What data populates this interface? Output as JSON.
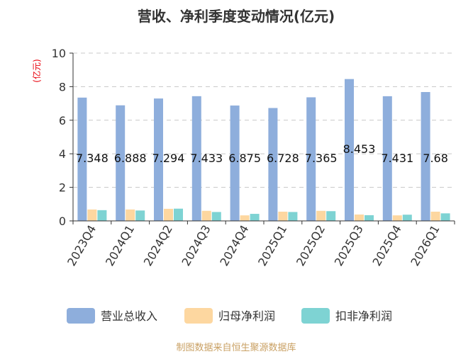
{
  "chart_data": {
    "type": "bar",
    "title": "营收、净利季度变动情况(亿元)",
    "unit_label": "(亿元)",
    "categories": [
      "2023Q4",
      "2024Q1",
      "2024Q2",
      "2024Q3",
      "2024Q4",
      "2025Q1",
      "2025Q2",
      "2025Q3",
      "2025Q4",
      "2026Q1"
    ],
    "series": [
      {
        "name": "营业总收入",
        "color": "#8eaedc",
        "values": [
          7.348,
          6.888,
          7.294,
          7.433,
          6.875,
          6.728,
          7.365,
          8.453,
          7.431,
          7.68
        ],
        "labels": [
          "7.348",
          "6.888",
          "7.294",
          "7.433",
          "6.875",
          "6.728",
          "7.365",
          "8.453",
          "7.431",
          "7.68"
        ]
      },
      {
        "name": "归母净利润",
        "color": "#fdd7a0",
        "values": [
          0.68,
          0.68,
          0.72,
          0.6,
          0.33,
          0.55,
          0.6,
          0.38,
          0.33,
          0.55
        ]
      },
      {
        "name": "扣非净利润",
        "color": "#7ed3d3",
        "values": [
          0.64,
          0.62,
          0.73,
          0.53,
          0.42,
          0.53,
          0.58,
          0.34,
          0.37,
          0.45
        ]
      }
    ],
    "y_ticks": [
      "0",
      "2",
      "4",
      "6",
      "8",
      "10"
    ],
    "ylim": [
      0,
      10
    ],
    "grid": true,
    "legend_position": "bottom"
  },
  "source_text": "制图数据来自恒生聚源数据库"
}
